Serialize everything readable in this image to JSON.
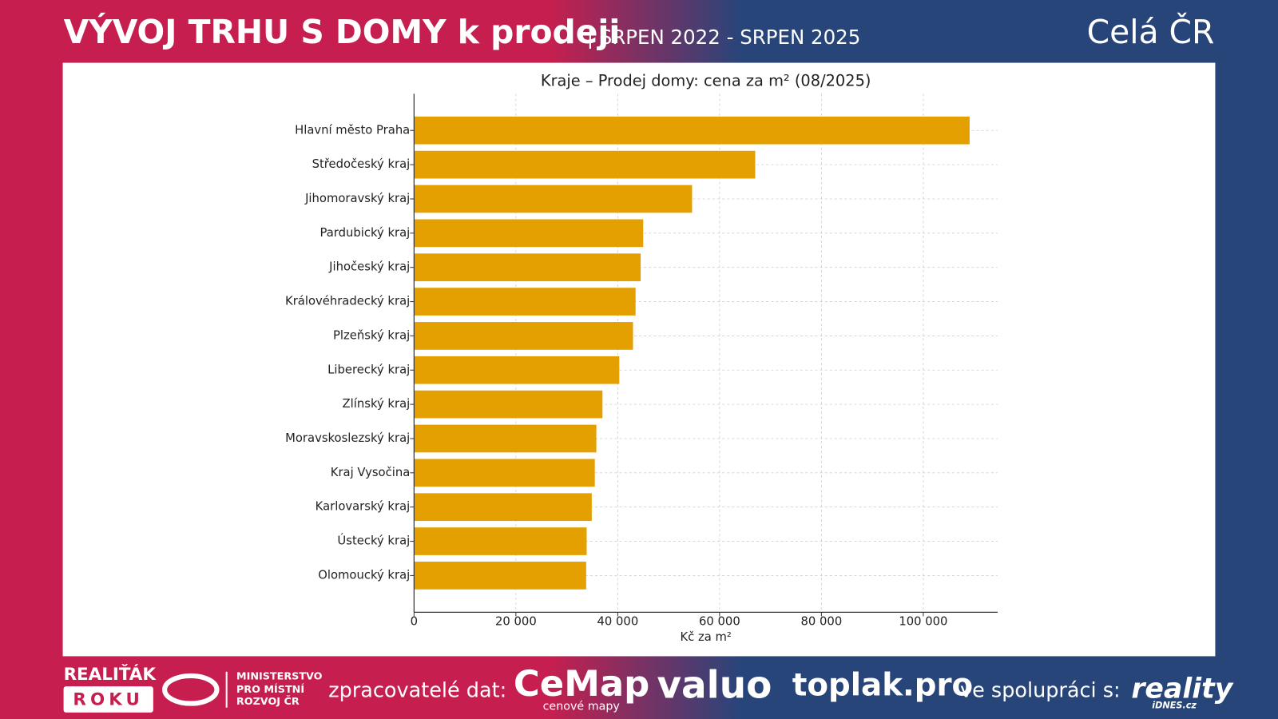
{
  "header": {
    "title": "VÝVOJ TRHU S DOMY k prodeji",
    "subtitle": "| SRPEN 2022 - SRPEN 2025",
    "region": "Celá ČR"
  },
  "chart_data": {
    "type": "barh",
    "title": "Kraje – Prodej domy: cena za m² (08/2025)",
    "x_label": "Kč za m²",
    "categories": [
      "Hlavní město Praha",
      "Středočeský kraj",
      "Jihomoravský kraj",
      "Pardubický kraj",
      "Jihočeský kraj",
      "Královéhradecký kraj",
      "Plzeňský kraj",
      "Liberecký kraj",
      "Zlínský kraj",
      "Moravskoslezský kraj",
      "Kraj Vysočina",
      "Karlovarský kraj",
      "Ústecký kraj",
      "Olomoucký kraj"
    ],
    "values": [
      109100,
      67000,
      54600,
      45000,
      44500,
      43500,
      43000,
      40300,
      37000,
      35800,
      35500,
      34900,
      33900,
      33800
    ],
    "color": "#e3a000",
    "xlim": [
      0,
      114600
    ],
    "xticks": [
      0,
      {
        "value": 20000,
        "label": "20 000"
      },
      {
        "value": 40000,
        "label": "40 000"
      },
      {
        "value": 60000,
        "label": "60 000"
      },
      {
        "value": 80000,
        "label": "80 000"
      },
      {
        "value": 100000,
        "label": "100 000"
      }
    ],
    "grid": true
  },
  "footer": {
    "award": {
      "line1": "REALIŤÁK",
      "line2": "ROKU"
    },
    "ministry": [
      "MINISTERSTVO",
      "PRO MÍSTNÍ",
      "ROZVOJ ČR"
    ],
    "processors_label": "zpracovatelé dat:",
    "cemap": "CeMap",
    "cemap_sub": "cenové mapy",
    "valuo": "valuo",
    "toplak": "toplak.pro",
    "cooperation_label": "ve spolupráci s:",
    "reality": "reality",
    "reality_sub": "iDNES.cz"
  }
}
